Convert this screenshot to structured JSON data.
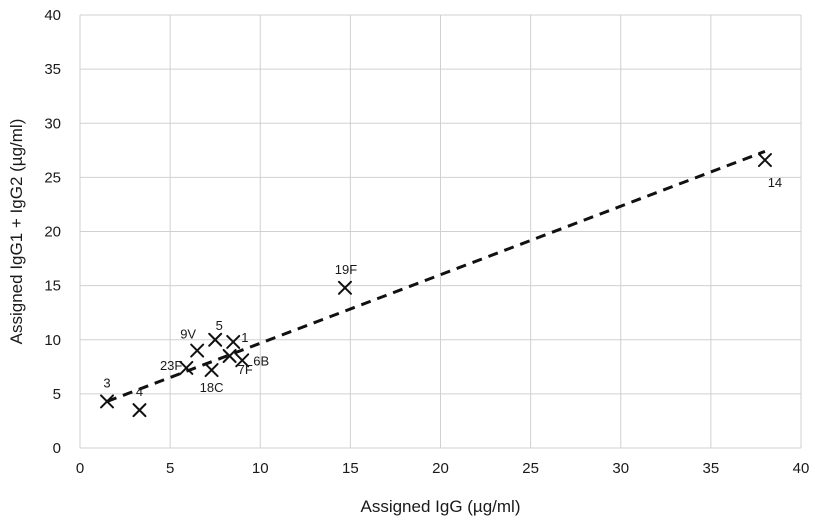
{
  "chart_data": {
    "type": "scatter",
    "xlabel": "Assigned IgG (µg/ml)",
    "ylabel": "Assigned IgG1 + IgG2 (µg/ml)",
    "xlim": [
      0,
      40
    ],
    "ylim": [
      0,
      40
    ],
    "xticks": [
      0,
      5,
      10,
      15,
      20,
      25,
      30,
      35,
      40
    ],
    "yticks": [
      0,
      5,
      10,
      15,
      20,
      25,
      30,
      35,
      40
    ],
    "grid": {
      "vertical": true,
      "horizontal": true
    },
    "marker": "x",
    "series": [
      {
        "points": [
          {
            "label": "3",
            "x": 1.5,
            "y": 4.3
          },
          {
            "label": "4",
            "x": 3.3,
            "y": 3.5
          },
          {
            "label": "23F",
            "x": 5.9,
            "y": 7.4
          },
          {
            "label": "9V",
            "x": 6.5,
            "y": 9.0
          },
          {
            "label": "18C",
            "x": 7.3,
            "y": 7.2
          },
          {
            "label": "5",
            "x": 7.5,
            "y": 10.0
          },
          {
            "label": "7F",
            "x": 8.3,
            "y": 8.5
          },
          {
            "label": "1",
            "x": 8.5,
            "y": 9.8
          },
          {
            "label": "6B",
            "x": 9.0,
            "y": 8.1
          },
          {
            "label": "19F",
            "x": 14.7,
            "y": 14.8
          },
          {
            "label": "14",
            "x": 38.0,
            "y": 26.6
          }
        ]
      }
    ],
    "trendline": {
      "style": "dashed",
      "from": {
        "x": 1.5,
        "y": 4.3
      },
      "to": {
        "x": 38.0,
        "y": 27.4
      }
    }
  }
}
